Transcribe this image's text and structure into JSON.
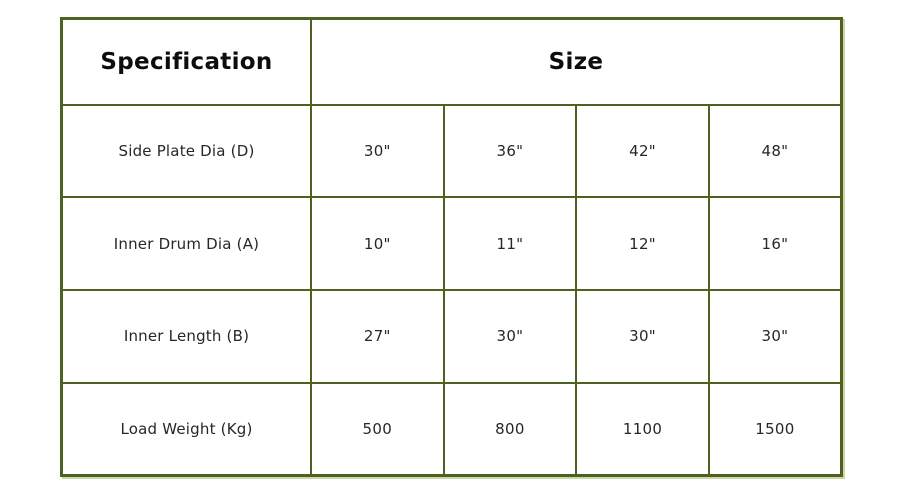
{
  "style": {
    "border_color": "#4d6120",
    "border_shadow_color": "#cdd6a8",
    "header_text_color": "#0d0d0d",
    "body_text_color": "#272727",
    "background_color": "#ffffff"
  },
  "chart_data": {
    "type": "table",
    "header": {
      "specification": "Specification",
      "size": "Size",
      "size_colspan": 4
    },
    "rows": [
      {
        "specification": "Side Plate Dia (D)",
        "sizes": [
          "30\"",
          "36\"",
          "42\"",
          "48\""
        ]
      },
      {
        "specification": "Inner Drum Dia (A)",
        "sizes": [
          "10\"",
          "11\"",
          "12\"",
          "16\""
        ]
      },
      {
        "specification": "Inner Length (B)",
        "sizes": [
          "27\"",
          "30\"",
          "30\"",
          "30\""
        ]
      },
      {
        "specification": "Load Weight (Kg)",
        "sizes": [
          "500",
          "800",
          "1100",
          "1500"
        ]
      }
    ]
  }
}
